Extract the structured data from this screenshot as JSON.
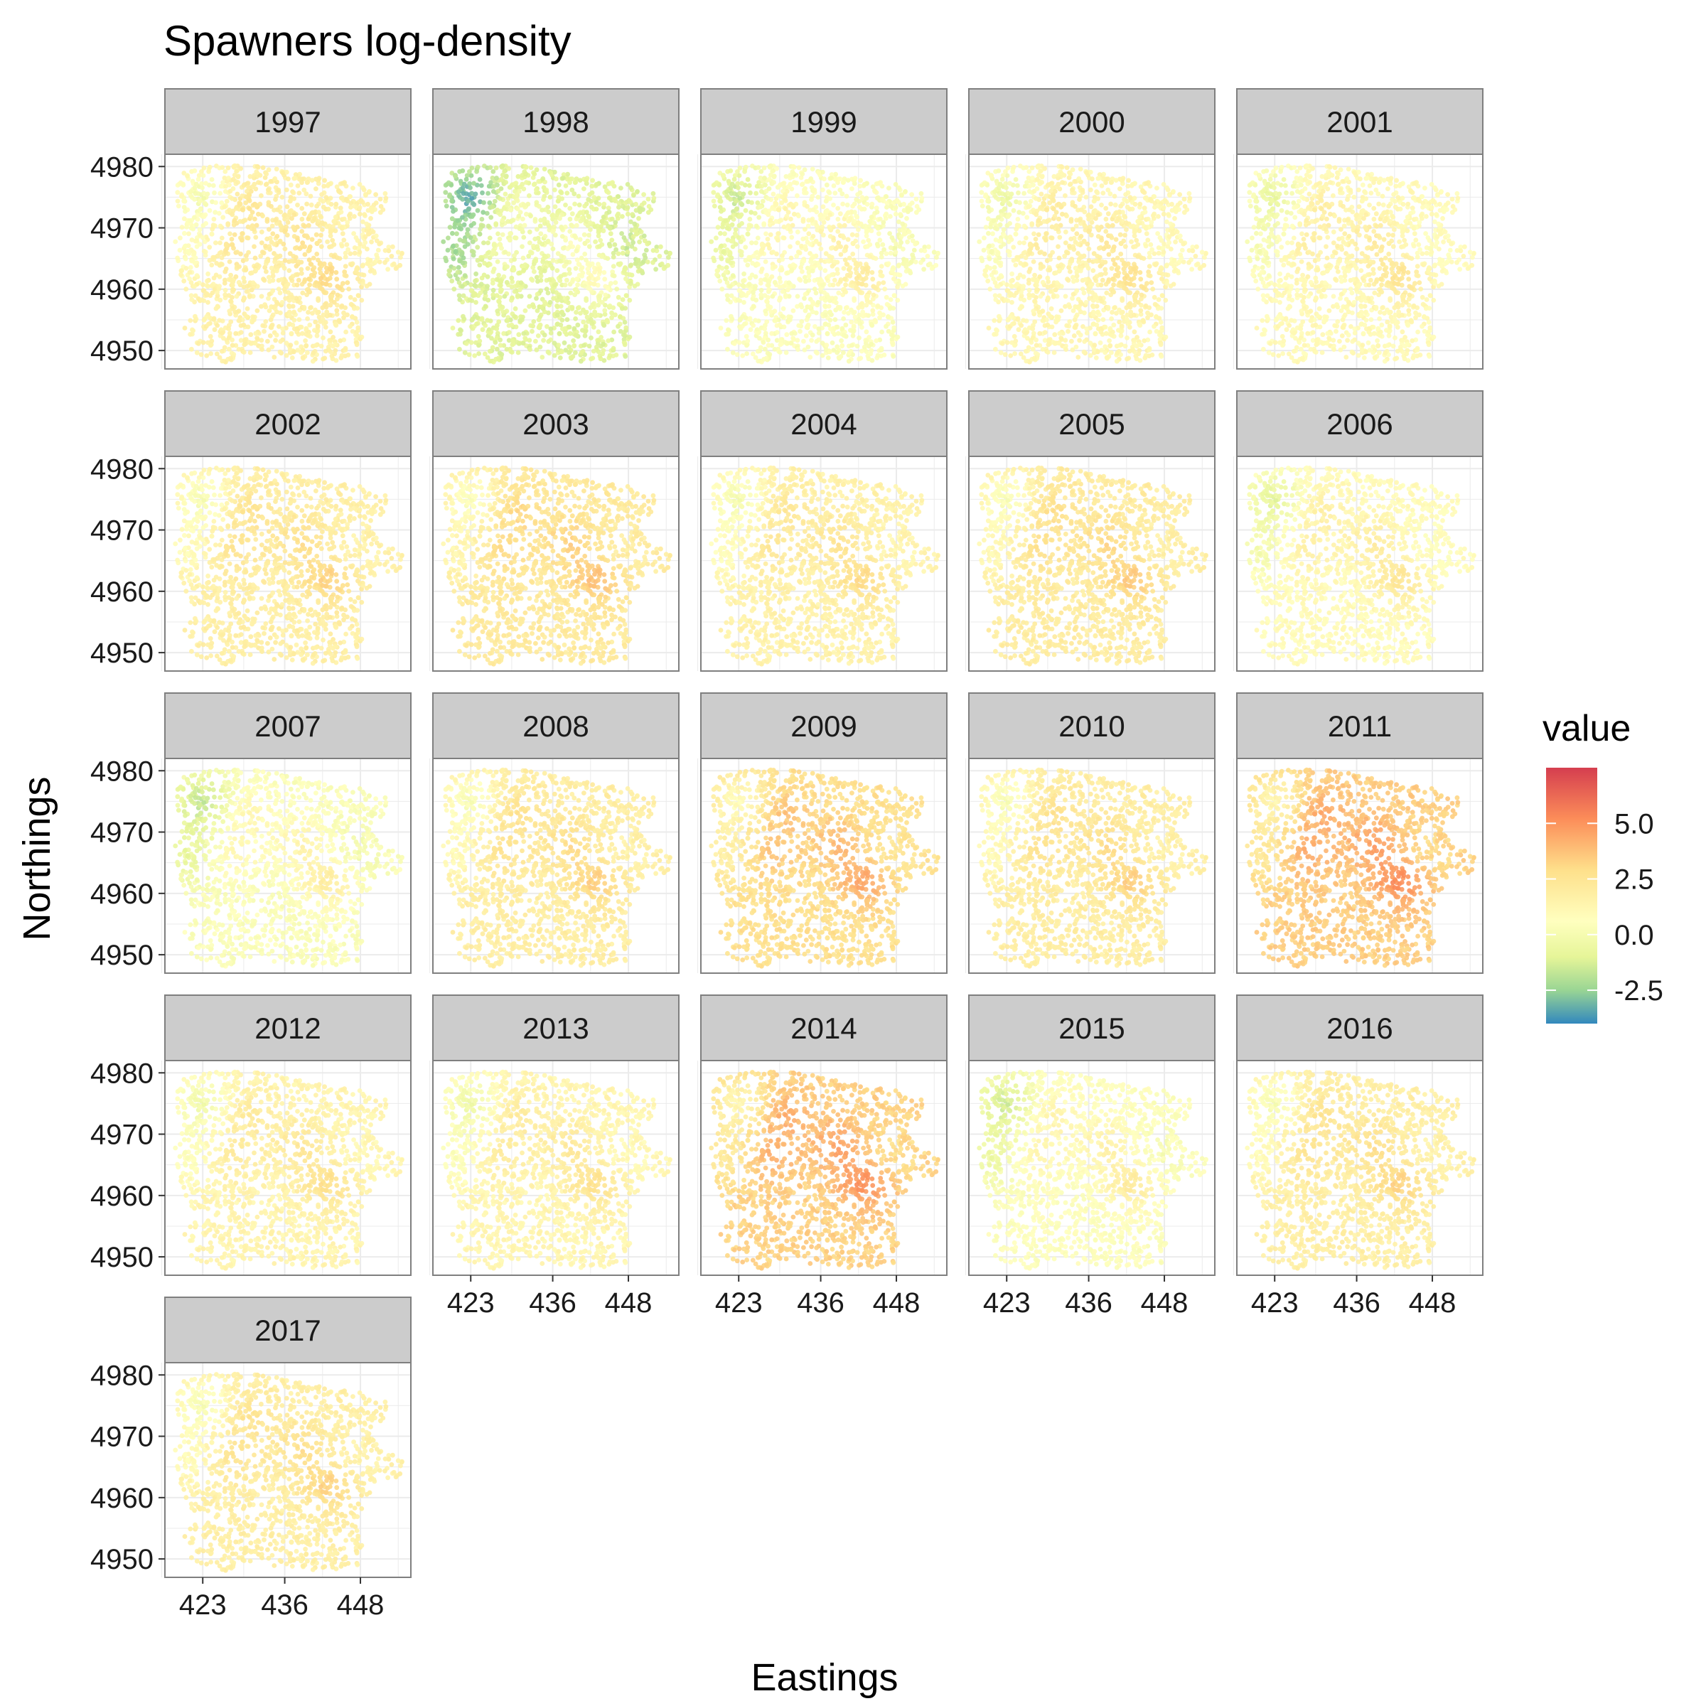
{
  "chart_data": {
    "type": "scatter",
    "title": "Spawners log-density",
    "xlabel": "Eastings",
    "ylabel": "Northings",
    "facets": [
      "1997",
      "1998",
      "1999",
      "2000",
      "2001",
      "2002",
      "2003",
      "2004",
      "2005",
      "2006",
      "2007",
      "2008",
      "2009",
      "2010",
      "2011",
      "2012",
      "2013",
      "2014",
      "2015",
      "2016",
      "2017"
    ],
    "facet_mean_value": {
      "1997": 1.6,
      "1998": -1.0,
      "1999": 0.4,
      "2000": 1.2,
      "2001": 1.0,
      "2002": 1.8,
      "2003": 2.2,
      "2004": 1.6,
      "2005": 2.0,
      "2006": 0.9,
      "2007": 0.3,
      "2008": 1.9,
      "2009": 2.8,
      "2010": 1.9,
      "2011": 3.4,
      "2012": 1.4,
      "2013": 1.3,
      "2014": 3.3,
      "2015": 0.5,
      "2016": 1.8,
      "2017": 1.8
    },
    "xlim": [
      417,
      456
    ],
    "ylim": [
      4947,
      4982
    ],
    "x_ticks": [
      423,
      436,
      448
    ],
    "y_ticks": [
      4950,
      4960,
      4970,
      4980
    ],
    "legend": {
      "title": "value",
      "position": "right",
      "range": [
        -4.0,
        7.5
      ],
      "ticks": [
        "5.0",
        "2.5",
        "0.0",
        "-2.5"
      ],
      "tick_values": [
        5.0,
        2.5,
        0.0,
        -2.5
      ],
      "colors": [
        "#3288bd",
        "#99d594",
        "#e6f598",
        "#ffffbf",
        "#fee08b",
        "#fc8d59",
        "#d53e4f"
      ]
    },
    "grid": true,
    "strip_color": "#cccccc",
    "panel_border_color": "#7f7f7f",
    "gridline_color": "#ebebeb"
  }
}
